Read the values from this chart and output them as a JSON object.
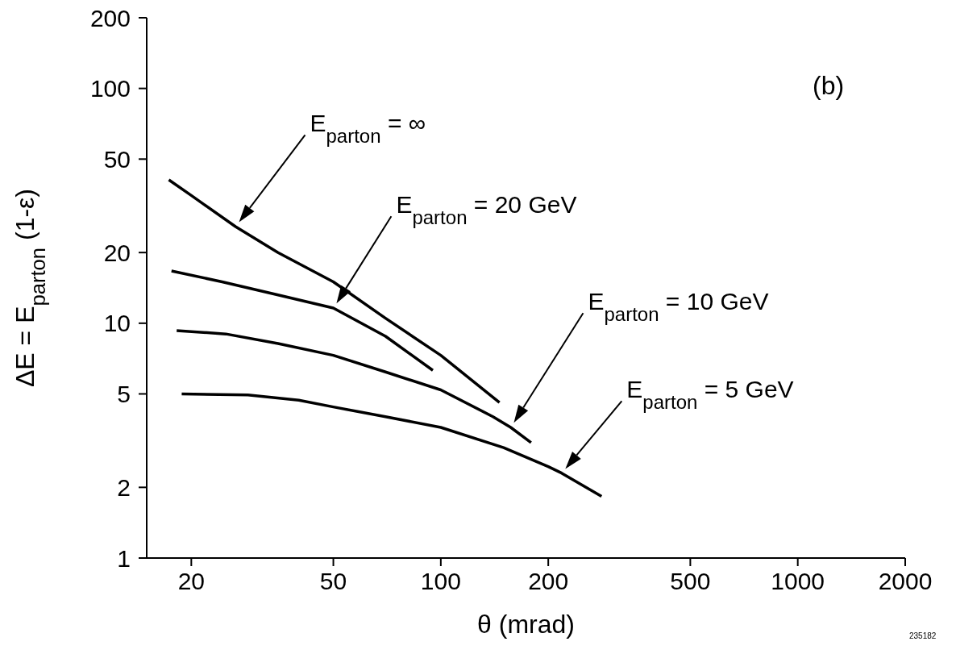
{
  "chart_data": {
    "type": "line",
    "xlabel": "θ (mrad)",
    "ylabel": "ΔE = E$_{parton}$ (1-ε)",
    "log": "xy",
    "grid": false,
    "legend": false,
    "marker": "none",
    "line_style": "solid",
    "xlim": [
      15,
      2000
    ],
    "xticks": [
      20,
      50,
      100,
      200,
      500,
      1000,
      2000
    ],
    "ylim": [
      1,
      200
    ],
    "yticks": [
      1,
      2,
      5,
      10,
      20,
      50,
      100,
      200
    ],
    "series": [
      {
        "name": "E$_{parton}$ = ∞",
        "color": "#000000",
        "x": [
          17.3,
          20,
          26.6,
          35,
          50,
          70,
          100,
          146
        ],
        "values": [
          40.8,
          35,
          25.8,
          20,
          15,
          10.5,
          7.3,
          4.6
        ]
      },
      {
        "name": "E$_{parton}$ = 20 GeV",
        "color": "#000000",
        "x": [
          17.6,
          24.4,
          35,
          50,
          70,
          95
        ],
        "values": [
          16.7,
          15,
          13.2,
          11.6,
          8.8,
          6.3
        ]
      },
      {
        "name": "E$_{parton}$ = 10 GeV",
        "color": "#000000",
        "x": [
          18.2,
          25,
          35,
          50,
          70,
          100,
          140,
          157,
          179
        ],
        "values": [
          9.3,
          9,
          8.2,
          7.3,
          6.2,
          5.2,
          4,
          3.6,
          3.1
        ]
      },
      {
        "name": "E$_{parton}$ = 5 GeV",
        "color": "#000000",
        "x": [
          18.8,
          28.8,
          40,
          50,
          70,
          100,
          150,
          200,
          218,
          282
        ],
        "values": [
          5,
          4.95,
          4.7,
          4.4,
          4,
          3.6,
          2.95,
          2.45,
          2.3,
          1.83
        ]
      }
    ],
    "annotations": [
      "(b)",
      "235182"
    ]
  }
}
